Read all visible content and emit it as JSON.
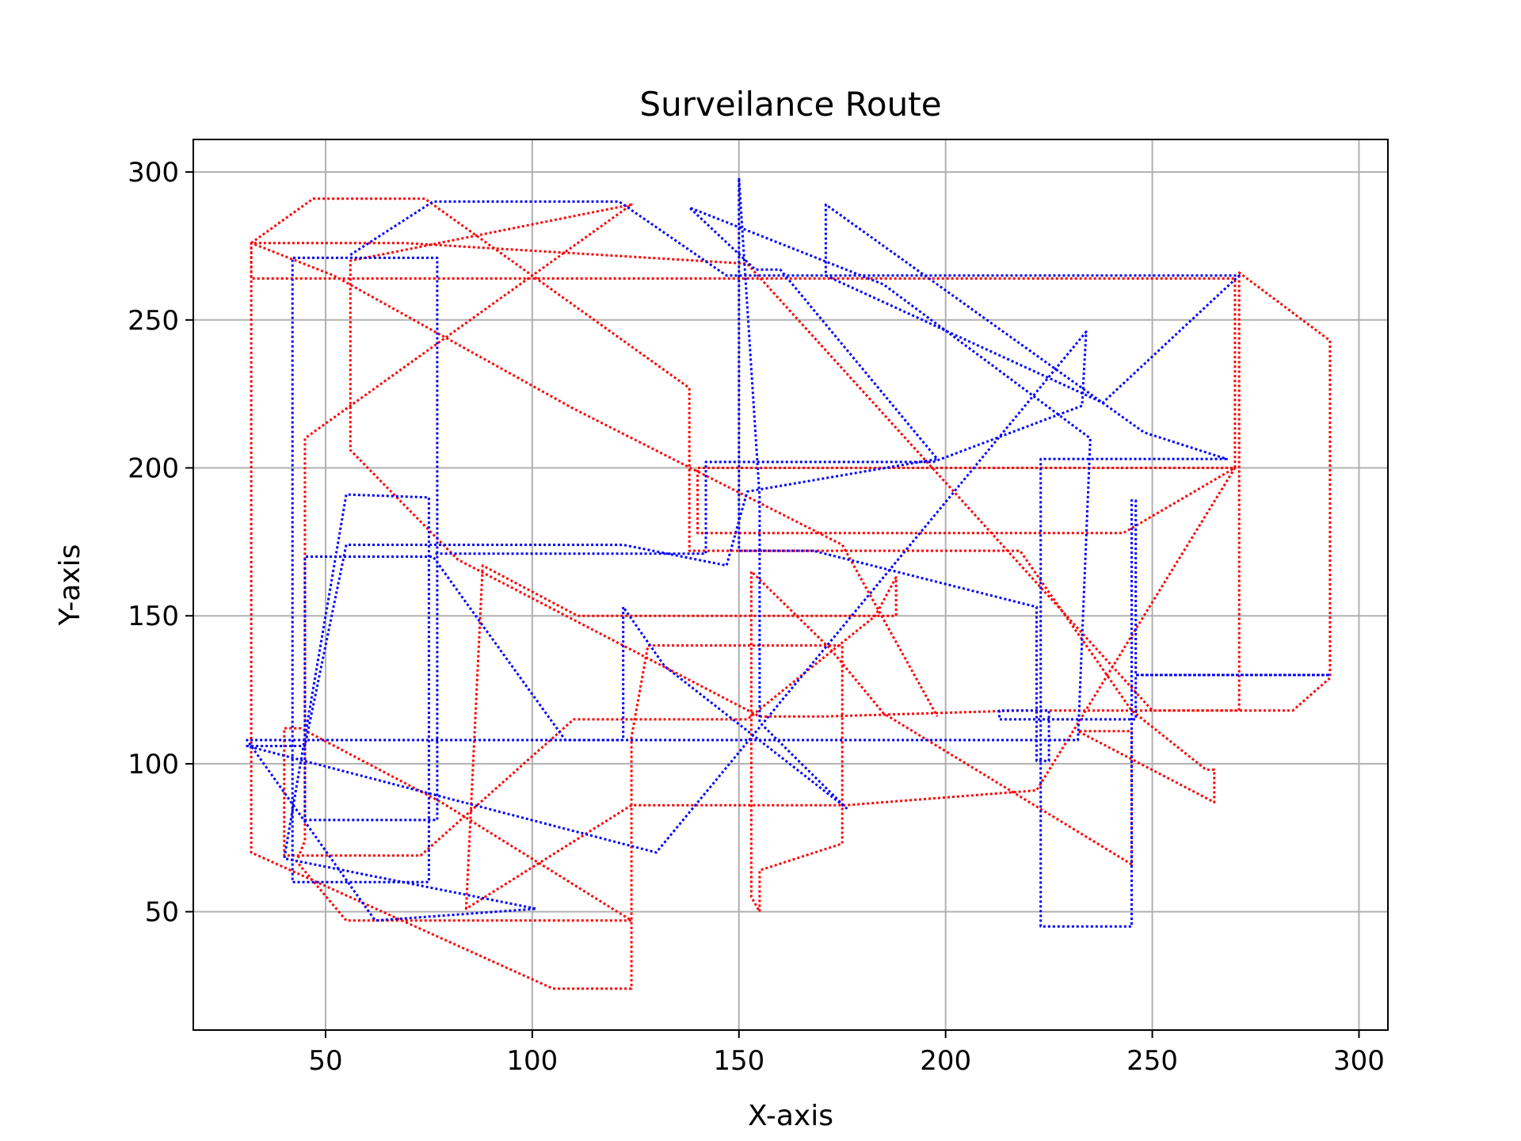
{
  "chart_data": {
    "type": "line",
    "title": "Surveilance Route",
    "xlabel": "X-axis",
    "ylabel": "Y-axis",
    "xlim": [
      18,
      307
    ],
    "ylim": [
      10,
      311
    ],
    "xticks": [
      50,
      100,
      150,
      200,
      250,
      300
    ],
    "yticks": [
      50,
      100,
      150,
      200,
      250,
      300
    ],
    "grid": true,
    "legend": "none",
    "series": [
      {
        "color": "#ff0000",
        "x": [
          32,
          47,
          74,
          138,
          138,
          176,
          218,
          245,
          245,
          263,
          265,
          265,
          232,
          245,
          245,
          185,
          172,
          153,
          153,
          155,
          155,
          175,
          175,
          128,
          124,
          124,
          105,
          32,
          32,
          69,
          152,
          152,
          250,
          271,
          271,
          293,
          293,
          284,
          234,
          218,
          171,
          155,
          82,
          56,
          56,
          124,
          45,
          45,
          43,
          55,
          99,
          124,
          78,
          44,
          40,
          40,
          73,
          110,
          152,
          183,
          188,
          188,
          111,
          88,
          84,
          124,
          124,
          176,
          222,
          270,
          243,
          171,
          140,
          140,
          185,
          270,
          270,
          32,
          32,
          52,
          110,
          175,
          198
        ],
        "y": [
          276,
          291,
          291,
          227,
          172,
          172,
          172,
          118,
          118,
          98,
          98,
          87,
          111,
          111,
          66,
          117,
          139,
          165,
          55,
          50,
          64,
          73,
          140,
          140,
          109,
          24,
          24,
          70,
          276,
          276,
          269,
          269,
          118,
          118,
          266,
          243,
          129,
          118,
          118,
          118,
          116,
          116,
          169,
          206,
          270,
          289,
          210,
          74,
          67,
          47,
          47,
          47,
          87,
          112,
          112,
          69,
          69,
          115,
          115,
          150,
          163,
          150,
          150,
          167,
          51,
          86,
          86,
          86,
          91,
          200,
          178,
          178,
          178,
          200,
          200,
          200,
          264,
          264,
          276,
          265,
          220,
          174,
          116
        ]
      },
      {
        "color": "#0000ff",
        "x": [
          56,
          76,
          121,
          147,
          271,
          271,
          238,
          238,
          171,
          171,
          248,
          268,
          223,
          223,
          245,
          245,
          246,
          246,
          293,
          246,
          246,
          213,
          213,
          225,
          225,
          222,
          222,
          168,
          150,
          150,
          155,
          155,
          155,
          176,
          176,
          132,
          122,
          122,
          108,
          76,
          45,
          45,
          77,
          77,
          42,
          42,
          75,
          75,
          55,
          40,
          40,
          101,
          101,
          62,
          31,
          31,
          232,
          232,
          235,
          235,
          185,
          138,
          138,
          154,
          160,
          198,
          198,
          152,
          147,
          122,
          115,
          55,
          45,
          44,
          31,
          130,
          234,
          233,
          197,
          142,
          142,
          97,
          76
        ],
        "y": [
          272,
          290,
          290,
          265,
          265,
          265,
          222,
          222,
          265,
          289,
          212,
          203,
          203,
          45,
          45,
          189,
          189,
          130,
          130,
          130,
          115,
          115,
          118,
          118,
          101,
          101,
          153,
          172,
          172,
          298,
          190,
          190,
          114,
          85,
          85,
          133,
          153,
          108,
          108,
          170,
          170,
          81,
          81,
          271,
          271,
          60,
          60,
          190,
          191,
          68,
          68,
          51,
          51,
          47,
          108,
          108,
          108,
          108,
          210,
          210,
          262,
          288,
          288,
          267,
          267,
          203,
          203,
          192,
          167,
          174,
          174,
          174,
          106,
          106,
          106,
          70,
          246,
          221,
          202,
          202,
          171,
          171,
          171
        ]
      }
    ]
  }
}
